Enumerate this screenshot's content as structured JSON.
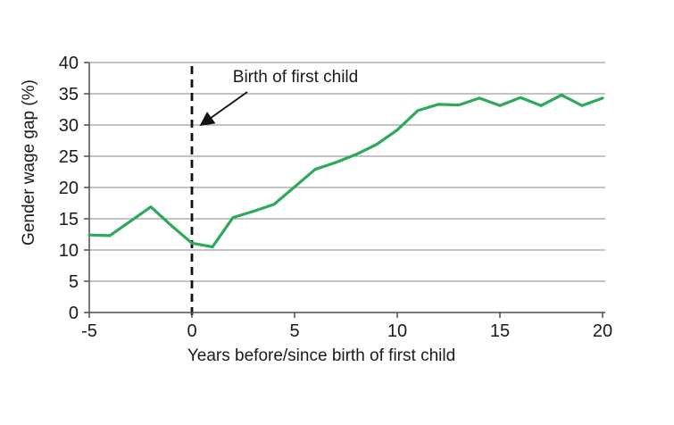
{
  "chart_data": {
    "type": "line",
    "title": "",
    "xlabel": "Years before/since birth of first child",
    "ylabel": "Gender wage gap (%)",
    "x": [
      -5,
      -4,
      -3,
      -2,
      -1,
      0,
      1,
      2,
      3,
      4,
      5,
      6,
      7,
      8,
      9,
      10,
      11,
      12,
      13,
      14,
      15,
      16,
      17,
      18,
      19,
      20
    ],
    "series": [
      {
        "name": "Gender wage gap",
        "color": "#2ca959",
        "values": [
          12.4,
          12.3,
          14.6,
          16.9,
          13.9,
          11.1,
          10.5,
          15.2,
          16.2,
          17.3,
          20.1,
          22.9,
          24.0,
          25.3,
          26.9,
          29.2,
          32.3,
          33.3,
          33.2,
          34.3,
          33.1,
          34.4,
          33.1,
          34.8,
          33.1,
          34.3
        ]
      }
    ],
    "xlim": [
      -5,
      20
    ],
    "ylim": [
      0,
      40
    ],
    "xtick_step": 5,
    "ytick_step": 5,
    "xtick_labels": [
      "-5",
      "0",
      "5",
      "10",
      "15",
      "20"
    ],
    "ytick_labels": [
      "0",
      "5",
      "10",
      "15",
      "20",
      "25",
      "30",
      "35",
      "40"
    ],
    "grid": "horizontal-only",
    "legend": "none",
    "annotation": {
      "text": "Birth of first child",
      "points_to_x": 0,
      "points_to_y": 30
    },
    "reference_line": {
      "style": "vertical-dashed",
      "x": 0,
      "color": "#111111"
    }
  },
  "colors": {
    "background": "#ffffff",
    "gridline": "#8a8a8a",
    "axis": "#4f4f4f",
    "text": "#1a1a1a"
  }
}
